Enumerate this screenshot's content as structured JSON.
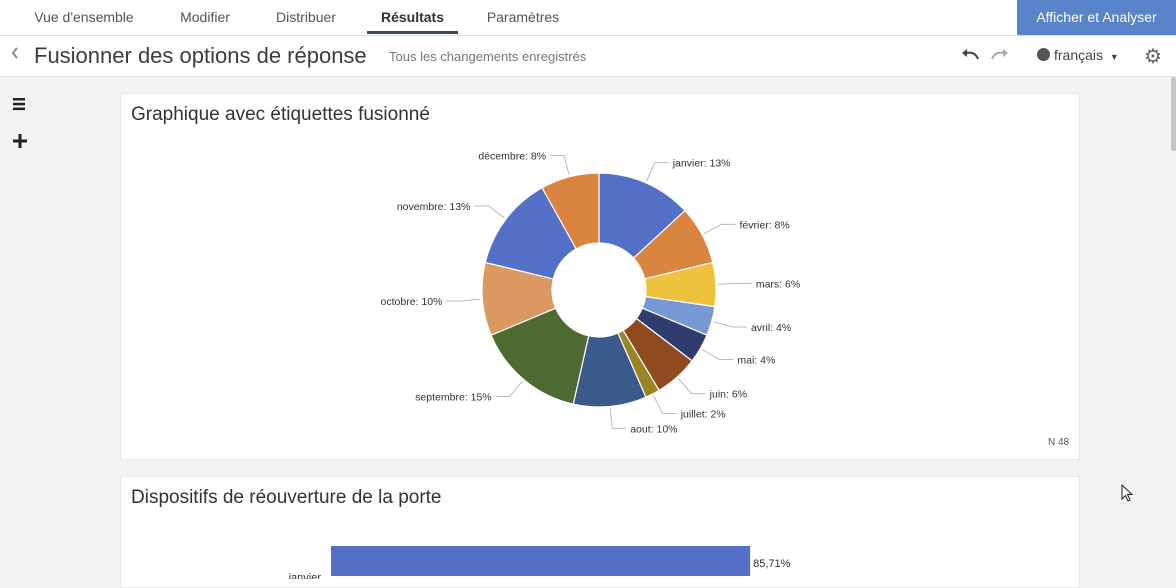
{
  "nav": {
    "tabs": [
      {
        "label": "Vue d'ensemble"
      },
      {
        "label": "Modifier"
      },
      {
        "label": "Distribuer"
      },
      {
        "label": "Résultats"
      },
      {
        "label": "Paramètres"
      }
    ],
    "active_tab": "Résultats",
    "cta_label": "Afficher et Analyser"
  },
  "header": {
    "title": "Fusionner des options de réponse",
    "status": "Tous les changements enregistrés",
    "language": "français"
  },
  "icons": {
    "back": "chevron-left-icon",
    "undo": "undo-icon",
    "redo": "redo-icon",
    "language": "globe-icon",
    "settings": "gear-icon",
    "menu": "hamburger-icon",
    "add": "plus-icon"
  },
  "card1": {
    "title": "Graphique avec étiquettes fusionné",
    "n_label": "N 48"
  },
  "card2": {
    "title": "Dispositifs de réouverture de la porte",
    "bar_value_label": "85,71%",
    "bar_category_label": "janvier"
  },
  "chart_data": [
    {
      "type": "pie",
      "title": "Graphique avec étiquettes fusionné",
      "donut": true,
      "slices": [
        {
          "label": "janvier",
          "value": 13,
          "display": "janvier: 13%",
          "color": "#5470c6"
        },
        {
          "label": "février",
          "value": 8,
          "display": "février: 8%",
          "color": "#d98540"
        },
        {
          "label": "mars",
          "value": 6,
          "display": "mars: 6%",
          "color": "#efc23e"
        },
        {
          "label": "avril",
          "value": 4,
          "display": "avril: 4%",
          "color": "#7699d4"
        },
        {
          "label": "mai",
          "value": 4,
          "display": "mai: 4%",
          "color": "#2f3d6e"
        },
        {
          "label": "juin",
          "value": 6,
          "display": "juin: 6%",
          "color": "#8f4a1f"
        },
        {
          "label": "juillet",
          "value": 2,
          "display": "juillet: 2%",
          "color": "#9a8425"
        },
        {
          "label": "aout",
          "value": 10,
          "display": "aout: 10%",
          "color": "#3b5a8c"
        },
        {
          "label": "septembre",
          "value": 15,
          "display": "septembre: 15%",
          "color": "#4d6a33"
        },
        {
          "label": "octobre",
          "value": 10,
          "display": "octobre: 10%",
          "color": "#db9861"
        },
        {
          "label": "novembre",
          "value": 13,
          "display": "novembre: 13%",
          "color": "#5470c6"
        },
        {
          "label": "décembre",
          "value": 8,
          "display": "décembre: 8%",
          "color": "#d98540"
        }
      ]
    },
    {
      "type": "bar",
      "orientation": "horizontal",
      "title": "Dispositifs de réouverture de la porte",
      "categories": [
        "janvier"
      ],
      "values": [
        85.71
      ],
      "value_labels": [
        "85,71%"
      ],
      "xlim": [
        0,
        100
      ],
      "color": "#5470c6"
    }
  ]
}
